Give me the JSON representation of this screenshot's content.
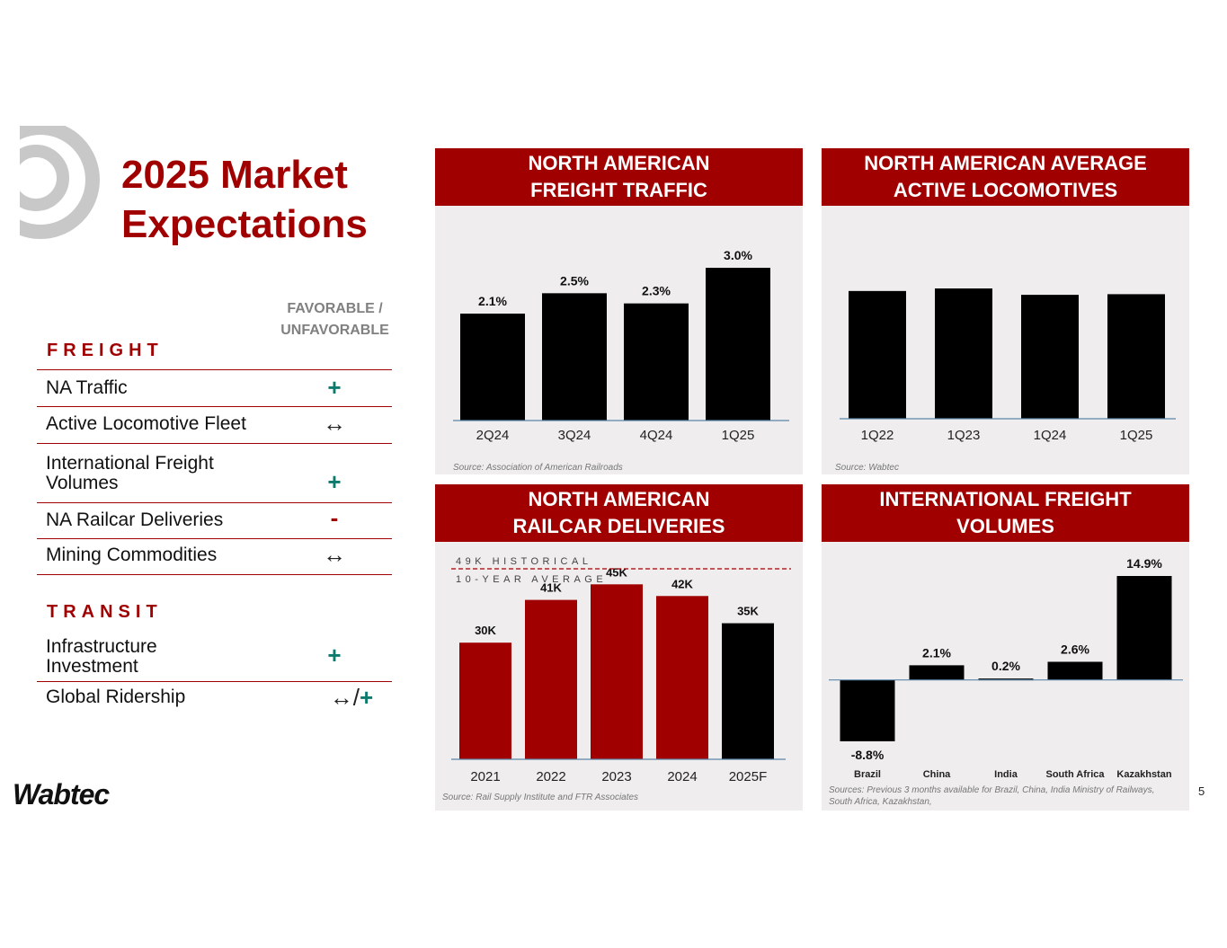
{
  "title": {
    "line1": "2025 Market",
    "line2": "Expectations"
  },
  "favorable_header": {
    "line1": "FAVORABLE /",
    "line2": "UNFAVORABLE"
  },
  "freight": {
    "heading": "FREIGHT",
    "rows": [
      {
        "label": "NA Traffic",
        "symbol": "+"
      },
      {
        "label": "Active Locomotive Fleet",
        "symbol": "↔"
      },
      {
        "label_line1": "International Freight",
        "label_line2": "Volumes",
        "symbol": "+"
      },
      {
        "label": "NA Railcar Deliveries",
        "symbol": "-"
      },
      {
        "label": "Mining Commodities",
        "symbol": "↔"
      }
    ]
  },
  "transit": {
    "heading": "TRANSIT",
    "rows": [
      {
        "label_line1": "Infrastructure",
        "label_line2": "Investment",
        "symbol": "+"
      },
      {
        "label": "Global Ridership",
        "symbol_a": "↔/",
        "symbol_b": "+"
      }
    ]
  },
  "logo": "Wabtec",
  "page_number": "5",
  "colors": {
    "brand_red": "#a00000",
    "bar_black": "#000000",
    "favorable_green": "#0d7a6e",
    "panel_bg": "#efeded"
  },
  "chart_data": [
    {
      "type": "bar",
      "title_line1": "NORTH AMERICAN",
      "title_line2": "FREIGHT TRAFFIC",
      "categories": [
        "2Q24",
        "3Q24",
        "4Q24",
        "1Q25"
      ],
      "values": [
        2.1,
        2.5,
        2.3,
        3.0
      ],
      "labels": [
        "2.1%",
        "2.5%",
        "2.3%",
        "3.0%"
      ],
      "ylim": [
        0,
        3.0
      ],
      "source": "Source: Association of American Railroads"
    },
    {
      "type": "bar",
      "title_line1": "NORTH AMERICAN AVERAGE",
      "title_line2": "ACTIVE LOCOMOTIVES",
      "categories": [
        "1Q22",
        "1Q23",
        "1Q24",
        "1Q25"
      ],
      "values": [
        100,
        102,
        97,
        97.5
      ],
      "ylim": [
        0,
        102
      ],
      "source": "Source: Wabtec"
    },
    {
      "type": "bar",
      "title_line1": "NORTH AMERICAN",
      "title_line2": "RAILCAR DELIVERIES",
      "categories": [
        "2021",
        "2022",
        "2023",
        "2024",
        "2025F"
      ],
      "values": [
        30,
        41,
        45,
        42,
        35
      ],
      "labels": [
        "30K",
        "41K",
        "45K",
        "42K",
        "35K"
      ],
      "bar_colors": [
        "#a00000",
        "#a00000",
        "#a00000",
        "#a00000",
        "#000000"
      ],
      "reference_value": 49,
      "reference_label_line1": "49K HISTORICAL",
      "reference_label_line2": "10-YEAR AVERAGE",
      "ylim": [
        0,
        49
      ],
      "source": "Source: Rail Supply Institute and FTR Associates"
    },
    {
      "type": "bar",
      "title_line1": "INTERNATIONAL FREIGHT",
      "title_line2": "VOLUMES",
      "categories": [
        "Brazil",
        "China",
        "India",
        "South Africa",
        "Kazakhstan"
      ],
      "values": [
        -8.8,
        2.1,
        0.2,
        2.6,
        14.9
      ],
      "labels": [
        "-8.8%",
        "2.1%",
        "0.2%",
        "2.6%",
        "14.9%"
      ],
      "ylim": [
        -8.8,
        14.9
      ],
      "source_line1": "Sources: Previous 3 months available for Brazil, China, India Ministry of Railways,",
      "source_line2": "South Africa, Kazakhstan,"
    }
  ]
}
